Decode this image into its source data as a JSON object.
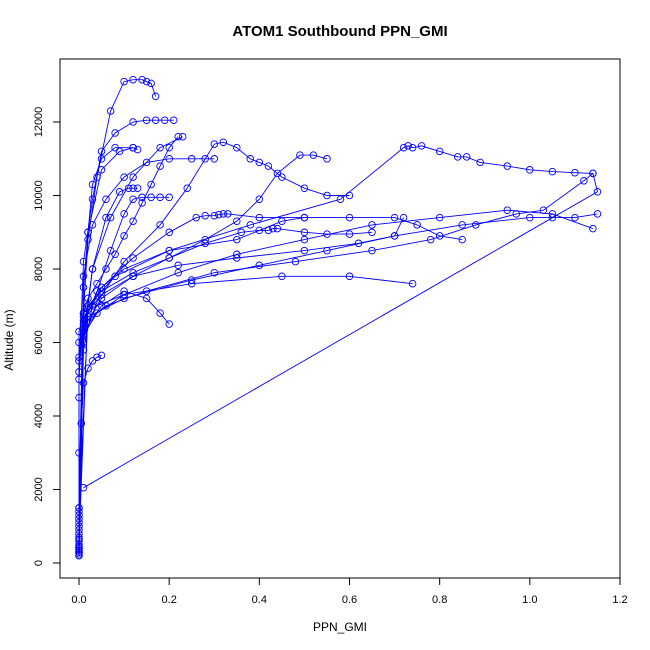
{
  "chart_data": {
    "type": "line",
    "title": "ATOM1 Southbound PPN_GMI",
    "xlabel": "PPN_GMI",
    "ylabel": "Altitude (m)",
    "xlim": [
      0,
      1.2
    ],
    "ylim": [
      0,
      13000
    ],
    "xticks": [
      "0.0",
      "0.2",
      "0.4",
      "0.6",
      "0.8",
      "1.0",
      "1.2"
    ],
    "yticks": [
      "0",
      "2000",
      "4000",
      "6000",
      "8000",
      "10000",
      "12000"
    ],
    "grid": false,
    "legend": "none",
    "color": "#0000ff",
    "marker": "open-circle",
    "series": [
      {
        "x": [
          0,
          0,
          0,
          0,
          0,
          0,
          0.01,
          0.02,
          0.04,
          0.06,
          0.08,
          0.1,
          0.12,
          0.14,
          0.16,
          0.18,
          0.2,
          0.22
        ],
        "y": [
          200,
          1500,
          3000,
          4500,
          5600,
          6300,
          6800,
          7200,
          7600,
          8000,
          8400,
          8900,
          9300,
          9800,
          10300,
          10800,
          11300,
          11600
        ]
      },
      {
        "x": [
          0,
          0,
          0.02,
          0.04,
          0.07,
          0.1,
          0.12,
          0.14,
          0.15,
          0.16,
          0.17
        ],
        "y": [
          300,
          5000,
          8800,
          10500,
          12300,
          13100,
          13150,
          13150,
          13100,
          13050,
          12700
        ]
      },
      {
        "x": [
          0,
          0,
          0.01,
          0.03,
          0.05,
          0.08,
          0.12,
          0.15,
          0.17,
          0.19,
          0.21
        ],
        "y": [
          400,
          5200,
          8200,
          9900,
          11200,
          11700,
          12000,
          12050,
          12050,
          12050,
          12050
        ]
      },
      {
        "x": [
          0,
          0,
          0.01,
          0.05,
          0.12,
          0.2,
          0.28,
          0.35,
          0.4,
          0.44,
          0.49,
          0.52,
          0.55
        ],
        "y": [
          250,
          5500,
          6800,
          7400,
          7900,
          8300,
          8800,
          9300,
          9900,
          10600,
          11100,
          11100,
          11000
        ]
      },
      {
        "x": [
          0,
          0,
          0.02,
          0.1,
          0.25,
          0.4,
          0.55,
          0.7,
          0.85,
          1.0,
          1.05,
          1.1,
          1.15
        ],
        "y": [
          300,
          6000,
          6700,
          7200,
          7700,
          8100,
          8500,
          8900,
          9200,
          9400,
          9400,
          9400,
          9500
        ]
      },
      {
        "x": [
          0,
          0.01,
          0.04,
          0.1,
          0.22,
          0.35,
          0.5,
          0.65,
          0.8,
          0.95,
          1.05,
          1.14
        ],
        "y": [
          400,
          6200,
          6800,
          7300,
          7900,
          8400,
          8800,
          9200,
          9400,
          9600,
          9500,
          9100
        ]
      },
      {
        "x": [
          0,
          0.01,
          0.06,
          0.15,
          0.3,
          0.48,
          0.65,
          0.78,
          0.88,
          0.97,
          1.03,
          1.12,
          1.14,
          1.15,
          0.01
        ],
        "y": [
          300,
          6500,
          7000,
          7400,
          7900,
          8200,
          8500,
          8800,
          9200,
          9500,
          9600,
          10400,
          10600,
          10100,
          2050
        ]
      },
      {
        "x": [
          0,
          0.02,
          0.08,
          0.2,
          0.38,
          0.58,
          0.72,
          0.73,
          0.74,
          0.76,
          0.8,
          0.84,
          0.86,
          0.89,
          0.95,
          1.0,
          1.05,
          1.1,
          1.14
        ],
        "y": [
          500,
          7000,
          7800,
          8500,
          9200,
          9900,
          11300,
          11350,
          11300,
          11350,
          11200,
          11050,
          11050,
          10900,
          10800,
          10700,
          10650,
          10620,
          10600
        ]
      },
      {
        "x": [
          0,
          0.01,
          0.05,
          0.12,
          0.2,
          0.26,
          0.28,
          0.3,
          0.31,
          0.32,
          0.33,
          0.4,
          0.5,
          0.6,
          0.7,
          0.75,
          0.8,
          0.85
        ],
        "y": [
          350,
          6600,
          7500,
          8300,
          9000,
          9400,
          9450,
          9450,
          9480,
          9500,
          9500,
          9400,
          9400,
          9400,
          9400,
          9200,
          8900,
          8800
        ]
      },
      {
        "x": [
          0,
          0.01,
          0.05,
          0.12,
          0.2,
          0.28,
          0.36,
          0.4,
          0.42,
          0.43,
          0.44,
          0.5,
          0.55,
          0.6,
          0.65
        ],
        "y": [
          450,
          6400,
          7200,
          7800,
          8300,
          8700,
          9000,
          9050,
          9050,
          9100,
          9100,
          9000,
          8950,
          8950,
          9000
        ]
      },
      {
        "x": [
          0,
          0.01,
          0.04,
          0.1,
          0.18,
          0.24,
          0.28,
          0.3,
          0.32,
          0.35,
          0.38,
          0.4,
          0.42,
          0.45,
          0.5,
          0.55,
          0.6
        ],
        "y": [
          200,
          6100,
          7100,
          8200,
          9200,
          10200,
          11000,
          11400,
          11450,
          11300,
          11000,
          10900,
          10800,
          10500,
          10200,
          10000,
          10000
        ]
      },
      {
        "x": [
          0,
          0.01,
          0.03,
          0.07,
          0.1,
          0.12,
          0.14,
          0.16,
          0.18,
          0.2
        ],
        "y": [
          600,
          5800,
          7000,
          8500,
          9500,
          9900,
          9950,
          9950,
          9950,
          9950
        ]
      },
      {
        "x": [
          0,
          0.01,
          0.03,
          0.06,
          0.09,
          0.11,
          0.12,
          0.13
        ],
        "y": [
          700,
          6000,
          8000,
          9400,
          10100,
          10200,
          10200,
          10200
        ]
      },
      {
        "x": [
          0,
          0.01,
          0.02,
          0.05,
          0.09,
          0.12,
          0.13
        ],
        "y": [
          800,
          6800,
          9000,
          10700,
          11200,
          11300,
          11250
        ]
      },
      {
        "x": [
          0,
          0.005,
          0.01,
          0.02,
          0.03,
          0.04,
          0.05
        ],
        "y": [
          650,
          3800,
          4900,
          5300,
          5500,
          5600,
          5650
        ]
      },
      {
        "x": [
          0,
          0.01,
          0.05,
          0.1,
          0.15,
          0.18,
          0.2
        ],
        "y": [
          900,
          6300,
          7000,
          7400,
          7200,
          6800,
          6500
        ]
      },
      {
        "x": [
          0,
          0.01,
          0.03,
          0.07,
          0.12,
          0.18,
          0.23
        ],
        "y": [
          1000,
          6200,
          8000,
          9400,
          10500,
          11300,
          11600
        ]
      },
      {
        "x": [
          0,
          0.01,
          0.05,
          0.12,
          0.22,
          0.35,
          0.5,
          0.62,
          0.7,
          0.72
        ],
        "y": [
          1100,
          6700,
          7300,
          7800,
          8100,
          8300,
          8500,
          8700,
          8900,
          9400
        ]
      },
      {
        "x": [
          0,
          0.02,
          0.1,
          0.25,
          0.45,
          0.6,
          0.74
        ],
        "y": [
          1200,
          6900,
          7300,
          7600,
          7800,
          7800,
          7600
        ]
      },
      {
        "x": [
          0,
          0.01,
          0.04,
          0.1,
          0.2,
          0.35,
          0.45,
          0.5
        ],
        "y": [
          1300,
          6500,
          7400,
          8000,
          8500,
          8800,
          9300,
          9400
        ]
      },
      {
        "x": [
          0,
          0.01,
          0.02,
          0.03,
          0.05,
          0.08,
          0.12
        ],
        "y": [
          1400,
          7500,
          9000,
          10300,
          11000,
          11300,
          11300
        ]
      },
      {
        "x": [
          0,
          0.01,
          0.03,
          0.06,
          0.1,
          0.15,
          0.2,
          0.25,
          0.3
        ],
        "y": [
          1500,
          7800,
          9200,
          9900,
          10500,
          10900,
          11000,
          11000,
          11000
        ]
      }
    ]
  }
}
